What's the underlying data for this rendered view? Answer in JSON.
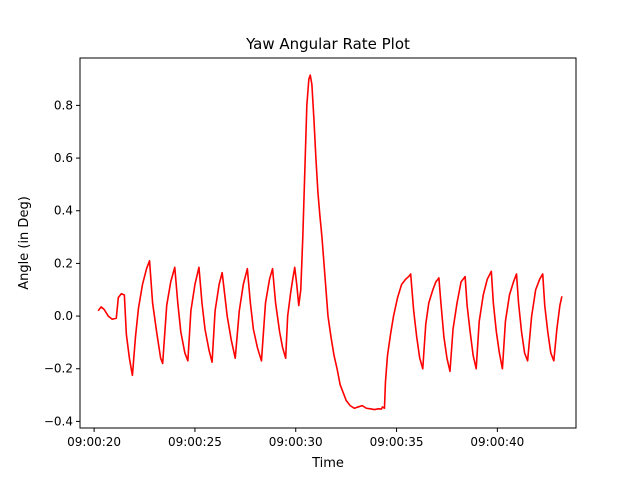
{
  "chart_data": {
    "type": "line",
    "title": "Yaw Angular Rate Plot",
    "xlabel": "Time",
    "ylabel": "Angle (in Deg)",
    "xlim": [
      19.3,
      43.9
    ],
    "ylim": [
      -0.425,
      0.98
    ],
    "grid": false,
    "x_ticks": [
      {
        "value": 20,
        "label": "09:00:20"
      },
      {
        "value": 25,
        "label": "09:00:25"
      },
      {
        "value": 30,
        "label": "09:00:30"
      },
      {
        "value": 35,
        "label": "09:00:35"
      },
      {
        "value": 40,
        "label": "09:00:40"
      }
    ],
    "y_ticks": [
      {
        "value": -0.4,
        "label": "−0.4"
      },
      {
        "value": -0.2,
        "label": "−0.2"
      },
      {
        "value": 0.0,
        "label": "0.0"
      },
      {
        "value": 0.2,
        "label": "0.2"
      },
      {
        "value": 0.4,
        "label": "0.4"
      },
      {
        "value": 0.6,
        "label": "0.6"
      },
      {
        "value": 0.8,
        "label": "0.8"
      }
    ],
    "series": [
      {
        "color": "#ff0000",
        "points": [
          [
            20.2,
            0.02
          ],
          [
            20.35,
            0.035
          ],
          [
            20.5,
            0.025
          ],
          [
            20.7,
            0.0
          ],
          [
            20.9,
            -0.012
          ],
          [
            21.1,
            -0.008
          ],
          [
            21.2,
            0.07
          ],
          [
            21.35,
            0.085
          ],
          [
            21.5,
            0.08
          ],
          [
            21.6,
            -0.07
          ],
          [
            21.75,
            -0.16
          ],
          [
            21.9,
            -0.225
          ],
          [
            22.05,
            -0.08
          ],
          [
            22.2,
            0.03
          ],
          [
            22.4,
            0.12
          ],
          [
            22.6,
            0.18
          ],
          [
            22.75,
            0.21
          ],
          [
            22.9,
            0.05
          ],
          [
            23.1,
            -0.06
          ],
          [
            23.3,
            -0.16
          ],
          [
            23.4,
            -0.18
          ],
          [
            23.6,
            0.04
          ],
          [
            23.8,
            0.13
          ],
          [
            24.0,
            0.185
          ],
          [
            24.15,
            0.05
          ],
          [
            24.3,
            -0.06
          ],
          [
            24.5,
            -0.14
          ],
          [
            24.65,
            -0.17
          ],
          [
            24.8,
            0.02
          ],
          [
            25.0,
            0.12
          ],
          [
            25.2,
            0.185
          ],
          [
            25.35,
            0.05
          ],
          [
            25.5,
            -0.05
          ],
          [
            25.7,
            -0.13
          ],
          [
            25.85,
            -0.175
          ],
          [
            26.0,
            0.02
          ],
          [
            26.2,
            0.12
          ],
          [
            26.35,
            0.165
          ],
          [
            26.45,
            0.1
          ],
          [
            26.6,
            0.0
          ],
          [
            26.8,
            -0.09
          ],
          [
            27.0,
            -0.16
          ],
          [
            27.2,
            0.02
          ],
          [
            27.4,
            0.12
          ],
          [
            27.6,
            0.18
          ],
          [
            27.75,
            0.05
          ],
          [
            27.9,
            -0.05
          ],
          [
            28.1,
            -0.12
          ],
          [
            28.3,
            -0.17
          ],
          [
            28.5,
            0.05
          ],
          [
            28.7,
            0.14
          ],
          [
            28.85,
            0.18
          ],
          [
            29.0,
            0.05
          ],
          [
            29.2,
            -0.06
          ],
          [
            29.35,
            -0.12
          ],
          [
            29.5,
            -0.16
          ],
          [
            29.6,
            0.0
          ],
          [
            29.75,
            0.09
          ],
          [
            29.85,
            0.14
          ],
          [
            29.95,
            0.185
          ],
          [
            30.05,
            0.12
          ],
          [
            30.15,
            0.04
          ],
          [
            30.25,
            0.1
          ],
          [
            30.35,
            0.3
          ],
          [
            30.45,
            0.55
          ],
          [
            30.55,
            0.8
          ],
          [
            30.65,
            0.9
          ],
          [
            30.72,
            0.915
          ],
          [
            30.8,
            0.88
          ],
          [
            30.9,
            0.75
          ],
          [
            31.0,
            0.6
          ],
          [
            31.1,
            0.47
          ],
          [
            31.2,
            0.38
          ],
          [
            31.3,
            0.3
          ],
          [
            31.4,
            0.2
          ],
          [
            31.5,
            0.1
          ],
          [
            31.6,
            0.0
          ],
          [
            31.75,
            -0.08
          ],
          [
            31.9,
            -0.15
          ],
          [
            32.05,
            -0.2
          ],
          [
            32.2,
            -0.26
          ],
          [
            32.35,
            -0.29
          ],
          [
            32.5,
            -0.32
          ],
          [
            32.7,
            -0.34
          ],
          [
            32.9,
            -0.35
          ],
          [
            33.1,
            -0.345
          ],
          [
            33.3,
            -0.34
          ],
          [
            33.5,
            -0.35
          ],
          [
            33.7,
            -0.352
          ],
          [
            33.9,
            -0.355
          ],
          [
            34.1,
            -0.352
          ],
          [
            34.25,
            -0.353
          ],
          [
            34.3,
            -0.345
          ],
          [
            34.4,
            -0.35
          ],
          [
            34.45,
            -0.25
          ],
          [
            34.55,
            -0.15
          ],
          [
            34.7,
            -0.07
          ],
          [
            34.85,
            0.0
          ],
          [
            35.05,
            0.07
          ],
          [
            35.25,
            0.12
          ],
          [
            35.45,
            0.14
          ],
          [
            35.6,
            0.15
          ],
          [
            35.7,
            0.16
          ],
          [
            35.85,
            0.02
          ],
          [
            36.0,
            -0.08
          ],
          [
            36.15,
            -0.16
          ],
          [
            36.3,
            -0.2
          ],
          [
            36.45,
            -0.03
          ],
          [
            36.6,
            0.05
          ],
          [
            36.8,
            0.1
          ],
          [
            36.95,
            0.13
          ],
          [
            37.1,
            0.145
          ],
          [
            37.2,
            0.05
          ],
          [
            37.35,
            -0.08
          ],
          [
            37.5,
            -0.16
          ],
          [
            37.65,
            -0.21
          ],
          [
            37.8,
            -0.05
          ],
          [
            38.0,
            0.05
          ],
          [
            38.2,
            0.13
          ],
          [
            38.4,
            0.15
          ],
          [
            38.5,
            0.04
          ],
          [
            38.65,
            -0.06
          ],
          [
            38.8,
            -0.15
          ],
          [
            38.95,
            -0.2
          ],
          [
            39.1,
            -0.02
          ],
          [
            39.3,
            0.08
          ],
          [
            39.5,
            0.14
          ],
          [
            39.7,
            0.17
          ],
          [
            39.8,
            0.05
          ],
          [
            39.95,
            -0.06
          ],
          [
            40.1,
            -0.14
          ],
          [
            40.25,
            -0.2
          ],
          [
            40.4,
            -0.02
          ],
          [
            40.6,
            0.08
          ],
          [
            40.8,
            0.13
          ],
          [
            40.95,
            0.16
          ],
          [
            41.05,
            0.05
          ],
          [
            41.2,
            -0.06
          ],
          [
            41.35,
            -0.14
          ],
          [
            41.5,
            -0.17
          ],
          [
            41.7,
            0.0
          ],
          [
            41.9,
            0.1
          ],
          [
            42.1,
            0.14
          ],
          [
            42.25,
            0.16
          ],
          [
            42.35,
            0.04
          ],
          [
            42.5,
            -0.06
          ],
          [
            42.65,
            -0.14
          ],
          [
            42.8,
            -0.17
          ],
          [
            42.95,
            -0.05
          ],
          [
            43.1,
            0.04
          ],
          [
            43.2,
            0.075
          ]
        ]
      }
    ]
  }
}
